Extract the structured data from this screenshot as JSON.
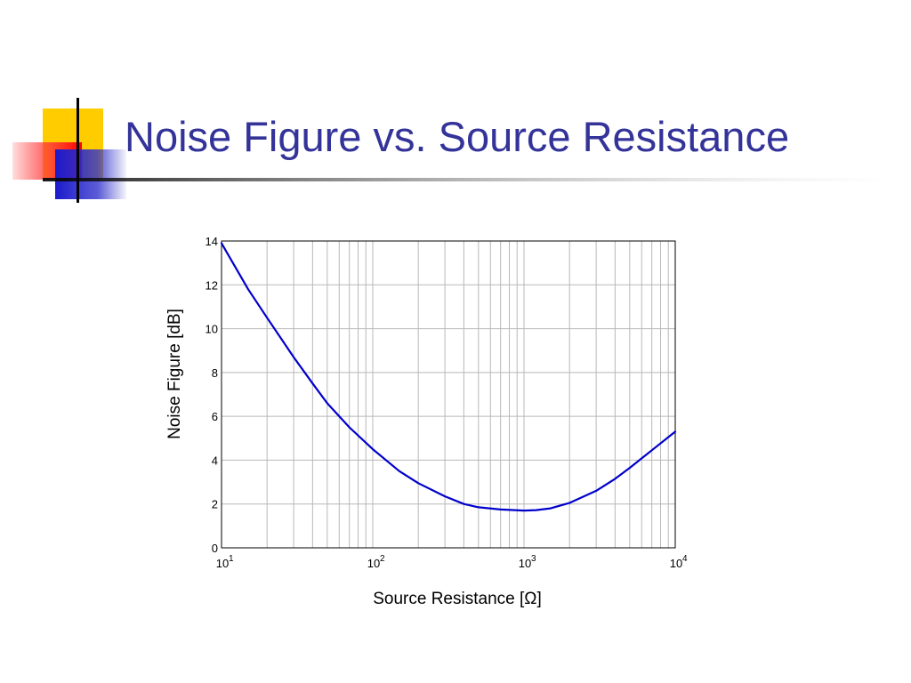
{
  "slide": {
    "title": "Noise Figure vs. Source Resistance",
    "title_color": "#333399"
  },
  "chart_data": {
    "type": "line",
    "xlabel": "Source Resistance [Ω]",
    "ylabel": "Noise Figure [dB]",
    "xscale": "log",
    "xlim": [
      10,
      10000
    ],
    "ylim": [
      0,
      14
    ],
    "grid": true,
    "x_tick_labels": [
      {
        "base": "10",
        "exp": "1"
      },
      {
        "base": "10",
        "exp": "2"
      },
      {
        "base": "10",
        "exp": "3"
      },
      {
        "base": "10",
        "exp": "4"
      }
    ],
    "y_tick_labels": [
      "0",
      "2",
      "4",
      "6",
      "8",
      "10",
      "12",
      "14"
    ],
    "line_color": "#0000cc",
    "series": [
      {
        "x": [
          10,
          15,
          20,
          30,
          40,
          50,
          70,
          100,
          150,
          200,
          300,
          400,
          500,
          700,
          1000,
          1200,
          1500,
          2000,
          3000,
          4000,
          5000,
          7000,
          10000
        ],
        "y": [
          13.9,
          11.8,
          10.5,
          8.7,
          7.5,
          6.6,
          5.5,
          4.5,
          3.5,
          2.95,
          2.35,
          2.0,
          1.85,
          1.75,
          1.7,
          1.72,
          1.8,
          2.05,
          2.6,
          3.15,
          3.65,
          4.45,
          5.3
        ]
      }
    ]
  }
}
